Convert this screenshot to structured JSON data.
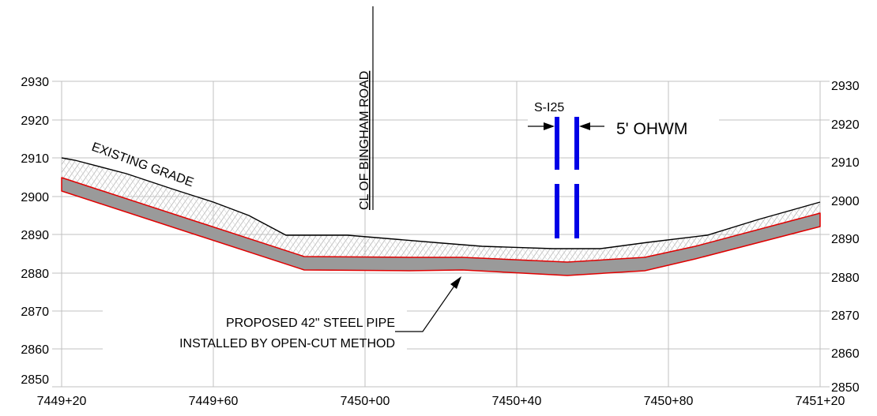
{
  "chart_data": {
    "type": "profile",
    "elevation_ticks": [
      "2930",
      "2920",
      "2910",
      "2900",
      "2890",
      "2880",
      "2870",
      "2860",
      "2850"
    ],
    "station_ticks": [
      "7449+20",
      "7449+60",
      "7450+00",
      "7450+40",
      "7450+80",
      "7451+20"
    ],
    "labels": {
      "existing_grade": "EXISTING GRADE",
      "centerline": "CL OF BINGHAM ROAD",
      "crossing": "S-I25",
      "ohwm": "5' OHWM",
      "pipe_line1": "PROPOSED 42\" STEEL PIPE",
      "pipe_line2": "INSTALLED BY OPEN-CUT METHOD"
    },
    "colors": {
      "grid": "#c0c0c0",
      "ground": "#000000",
      "pipe_outline": "#e00000",
      "pipe_fill": "#9a9a9a",
      "ohwm": "#0000e6"
    }
  }
}
